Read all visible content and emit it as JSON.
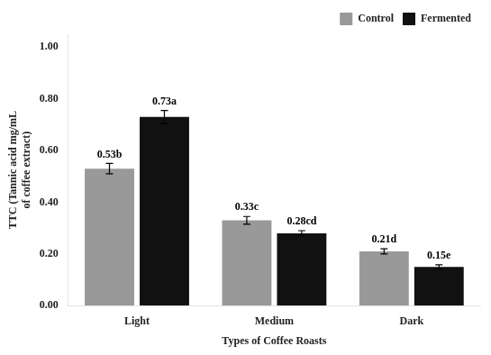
{
  "chart_data": {
    "type": "bar",
    "categories": [
      "Light",
      "Medium",
      "Dark"
    ],
    "series": [
      {
        "name": "Control",
        "color": "#999999",
        "values": [
          0.53,
          0.33,
          0.21
        ],
        "errors": [
          0.02,
          0.015,
          0.01
        ],
        "value_labels": [
          "0.53b",
          "0.33c",
          "0.21d"
        ]
      },
      {
        "name": "Fermented",
        "color": "#111111",
        "values": [
          0.73,
          0.28,
          0.15
        ],
        "errors": [
          0.025,
          0.01,
          0.008
        ],
        "value_labels": [
          "0.73a",
          "0.28cd",
          "0.15e"
        ]
      }
    ],
    "xlabel": "Types of Coffee Roasts",
    "ylabel": "TTC (Tannic acid mg/mL\nof coffee extract)",
    "ylim": [
      0,
      1.05
    ],
    "yticks": [
      {
        "value": 0,
        "label": "0.00"
      },
      {
        "value": 0.2,
        "label": "0.20"
      },
      {
        "value": 0.4,
        "label": "0.40"
      },
      {
        "value": 0.6,
        "label": "0.60"
      },
      {
        "value": 0.8,
        "label": "0.80"
      },
      {
        "value": 1.0,
        "label": "1.00"
      }
    ],
    "grid": false,
    "legend": "upper right",
    "data_labels": true
  }
}
